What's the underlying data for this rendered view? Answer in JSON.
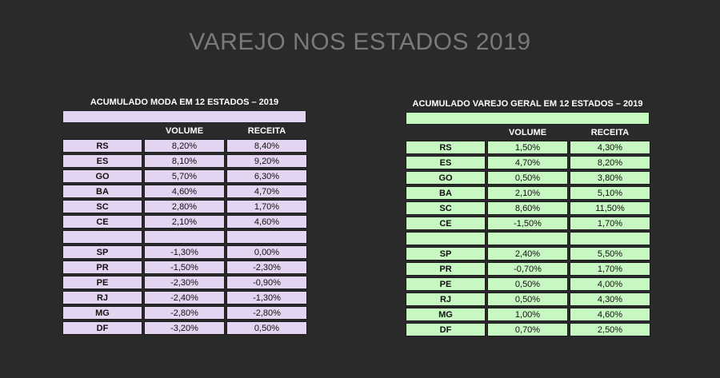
{
  "title": "VAREJO NOS ESTADOS 2019",
  "colors": {
    "background": "#2a2a2a",
    "moda_fill": "#e3d5f1",
    "varejo_fill": "#c8f8c2",
    "title": "#7a7a7a"
  },
  "tables": [
    {
      "title": "ACUMULADO MODA EM 12 ESTADOS – 2019",
      "headers": [
        "",
        "VOLUME",
        "RECEITA"
      ],
      "rows": [
        [
          "RS",
          "8,20%",
          "8,40%"
        ],
        [
          "ES",
          "8,10%",
          "9,20%"
        ],
        [
          "GO",
          "5,70%",
          "6,30%"
        ],
        [
          "BA",
          "4,60%",
          "4,70%"
        ],
        [
          "SC",
          "2,80%",
          "1,70%"
        ],
        [
          "CE",
          "2,10%",
          "4,60%"
        ],
        [
          "",
          "",
          ""
        ],
        [
          "SP",
          "-1,30%",
          "0,00%"
        ],
        [
          "PR",
          "-1,50%",
          "-2,30%"
        ],
        [
          "PE",
          "-2,30%",
          "-0,90%"
        ],
        [
          "RJ",
          "-2,40%",
          "-1,30%"
        ],
        [
          "MG",
          "-2,80%",
          "-2,80%"
        ],
        [
          "DF",
          "-3,20%",
          "0,50%"
        ]
      ]
    },
    {
      "title": "ACUMULADO VAREJO GERAL EM 12 ESTADOS – 2019",
      "headers": [
        "",
        "VOLUME",
        "RECEITA"
      ],
      "rows": [
        [
          "RS",
          "1,50%",
          "4,30%"
        ],
        [
          "ES",
          "4,70%",
          "8,20%"
        ],
        [
          "GO",
          "0,50%",
          "3,80%"
        ],
        [
          "BA",
          "2,10%",
          "5,10%"
        ],
        [
          "SC",
          "8,60%",
          "11,50%"
        ],
        [
          "CE",
          "-1,50%",
          "1,70%"
        ],
        [
          "",
          "",
          ""
        ],
        [
          "SP",
          "2,40%",
          "5,50%"
        ],
        [
          "PR",
          "-0,70%",
          "1,70%"
        ],
        [
          "PE",
          "0,50%",
          "4,00%"
        ],
        [
          "RJ",
          "0,50%",
          "4,30%"
        ],
        [
          "MG",
          "1,00%",
          "4,60%"
        ],
        [
          "DF",
          "0,70%",
          "2,50%"
        ]
      ]
    }
  ]
}
